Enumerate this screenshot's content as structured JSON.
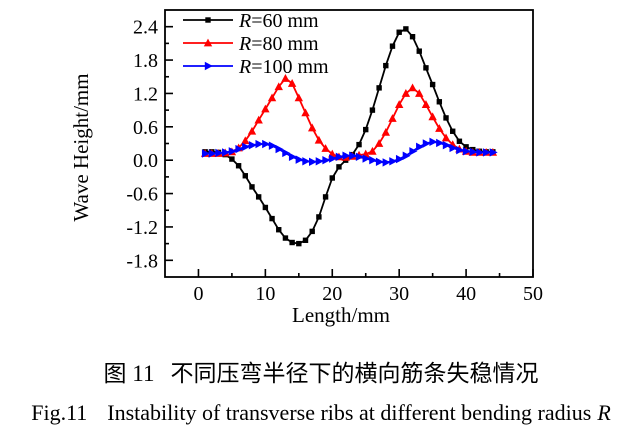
{
  "captions": {
    "zh": {
      "label": "图 11",
      "text": "不同压弯半径下的横向筋条失稳情况"
    },
    "en": {
      "label": "Fig.11",
      "text": "Instability of transverse ribs at different bending radius",
      "symbol": "R"
    }
  },
  "chart_data": {
    "type": "line",
    "title": "",
    "xlabel": "Length/mm",
    "ylabel": "Wave Height/mm",
    "xlim": [
      -5,
      50
    ],
    "ylim": [
      -2.1,
      2.7
    ],
    "xticks": [
      0,
      10,
      20,
      30,
      40,
      50
    ],
    "xminorticks": [
      5,
      15,
      25,
      35,
      45
    ],
    "yticks": [
      2.4,
      1.8,
      1.2,
      0.6,
      0.0,
      -0.6,
      -1.2,
      -1.8
    ],
    "yminorticks": [
      2.1,
      1.5,
      0.9,
      0.3,
      -0.3,
      -0.9,
      -1.5
    ],
    "grid": false,
    "legend_position": "top-left",
    "axis_color": "#000000",
    "series": [
      {
        "name": "R=60 mm",
        "color": "#000000",
        "marker": "square",
        "points": [
          [
            1,
            0.15
          ],
          [
            2,
            0.15
          ],
          [
            3,
            0.14
          ],
          [
            4,
            0.1
          ],
          [
            5,
            0.02
          ],
          [
            6,
            -0.1
          ],
          [
            7,
            -0.28
          ],
          [
            8,
            -0.48
          ],
          [
            9,
            -0.66
          ],
          [
            10,
            -0.85
          ],
          [
            11,
            -1.05
          ],
          [
            12,
            -1.25
          ],
          [
            13,
            -1.4
          ],
          [
            14,
            -1.48
          ],
          [
            15,
            -1.5
          ],
          [
            16,
            -1.44
          ],
          [
            17,
            -1.28
          ],
          [
            18,
            -1.02
          ],
          [
            19,
            -0.66
          ],
          [
            20,
            -0.32
          ],
          [
            21,
            -0.12
          ],
          [
            22,
            0.0
          ],
          [
            23,
            0.1
          ],
          [
            24,
            0.28
          ],
          [
            25,
            0.55
          ],
          [
            26,
            0.9
          ],
          [
            27,
            1.3
          ],
          [
            28,
            1.7
          ],
          [
            29,
            2.05
          ],
          [
            30,
            2.3
          ],
          [
            31,
            2.36
          ],
          [
            32,
            2.22
          ],
          [
            33,
            1.96
          ],
          [
            34,
            1.66
          ],
          [
            35,
            1.36
          ],
          [
            36,
            1.05
          ],
          [
            37,
            0.76
          ],
          [
            38,
            0.52
          ],
          [
            39,
            0.34
          ],
          [
            40,
            0.24
          ],
          [
            41,
            0.19
          ],
          [
            42,
            0.16
          ],
          [
            43,
            0.15
          ],
          [
            44,
            0.15
          ]
        ]
      },
      {
        "name": "R=80 mm",
        "color": "#ff0000",
        "marker": "triangle-up",
        "points": [
          [
            1,
            0.12
          ],
          [
            2,
            0.12
          ],
          [
            3,
            0.12
          ],
          [
            4,
            0.13
          ],
          [
            5,
            0.15
          ],
          [
            6,
            0.22
          ],
          [
            7,
            0.35
          ],
          [
            8,
            0.52
          ],
          [
            9,
            0.72
          ],
          [
            10,
            0.92
          ],
          [
            11,
            1.12
          ],
          [
            12,
            1.32
          ],
          [
            13,
            1.47
          ],
          [
            14,
            1.38
          ],
          [
            15,
            1.12
          ],
          [
            16,
            0.85
          ],
          [
            17,
            0.58
          ],
          [
            18,
            0.36
          ],
          [
            19,
            0.21
          ],
          [
            20,
            0.11
          ],
          [
            21,
            0.06
          ],
          [
            22,
            0.05
          ],
          [
            23,
            0.07
          ],
          [
            24,
            0.09
          ],
          [
            25,
            0.11
          ],
          [
            26,
            0.16
          ],
          [
            27,
            0.3
          ],
          [
            28,
            0.5
          ],
          [
            29,
            0.75
          ],
          [
            30,
            1.0
          ],
          [
            31,
            1.2
          ],
          [
            32,
            1.3
          ],
          [
            33,
            1.2
          ],
          [
            34,
            1.0
          ],
          [
            35,
            0.78
          ],
          [
            36,
            0.57
          ],
          [
            37,
            0.4
          ],
          [
            38,
            0.28
          ],
          [
            39,
            0.2
          ],
          [
            40,
            0.16
          ],
          [
            41,
            0.14
          ],
          [
            42,
            0.14
          ],
          [
            43,
            0.14
          ],
          [
            44,
            0.14
          ]
        ]
      },
      {
        "name": "R=100 mm",
        "color": "#0000ff",
        "marker": "triangle-right",
        "points": [
          [
            1,
            0.12
          ],
          [
            2,
            0.12
          ],
          [
            3,
            0.13
          ],
          [
            4,
            0.14
          ],
          [
            5,
            0.16
          ],
          [
            6,
            0.2
          ],
          [
            7,
            0.24
          ],
          [
            8,
            0.27
          ],
          [
            9,
            0.29
          ],
          [
            10,
            0.29
          ],
          [
            11,
            0.26
          ],
          [
            12,
            0.2
          ],
          [
            13,
            0.13
          ],
          [
            14,
            0.06
          ],
          [
            15,
            0.01
          ],
          [
            16,
            -0.02
          ],
          [
            17,
            -0.03
          ],
          [
            18,
            -0.02
          ],
          [
            19,
            0.0
          ],
          [
            20,
            0.03
          ],
          [
            21,
            0.06
          ],
          [
            22,
            0.08
          ],
          [
            23,
            0.08
          ],
          [
            24,
            0.06
          ],
          [
            25,
            0.03
          ],
          [
            26,
            0.0
          ],
          [
            27,
            -0.03
          ],
          [
            28,
            -0.04
          ],
          [
            29,
            -0.02
          ],
          [
            30,
            0.02
          ],
          [
            31,
            0.08
          ],
          [
            32,
            0.16
          ],
          [
            33,
            0.24
          ],
          [
            34,
            0.3
          ],
          [
            35,
            0.33
          ],
          [
            36,
            0.31
          ],
          [
            37,
            0.27
          ],
          [
            38,
            0.22
          ],
          [
            39,
            0.18
          ],
          [
            40,
            0.16
          ],
          [
            41,
            0.15
          ],
          [
            42,
            0.14
          ],
          [
            43,
            0.14
          ],
          [
            44,
            0.14
          ]
        ]
      }
    ]
  }
}
